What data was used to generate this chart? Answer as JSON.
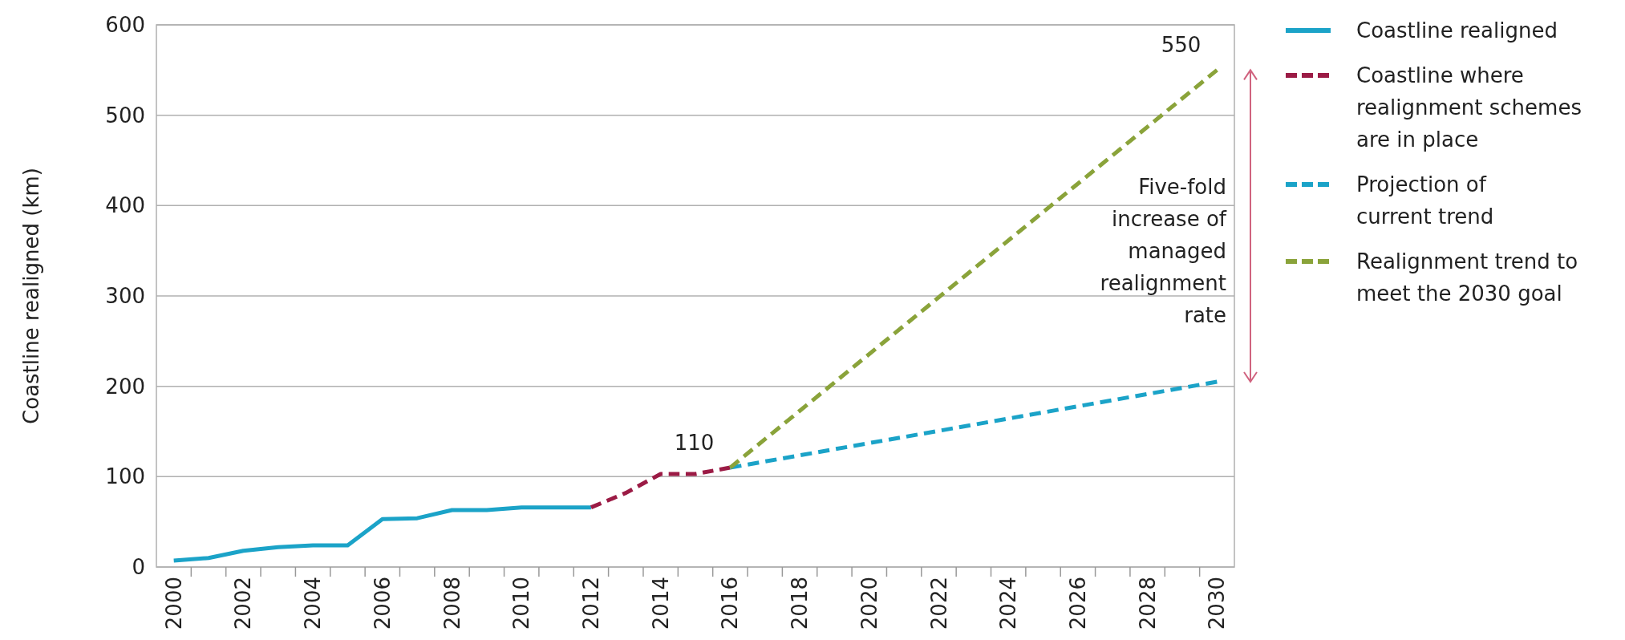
{
  "chart_data": {
    "type": "line",
    "ylabel": "Coastline realigned (km)",
    "xlim": [
      1999.5,
      2030.5
    ],
    "xticks": [
      {
        "value": 2000,
        "label": "2000"
      },
      {
        "value": 2002,
        "label": "2002"
      },
      {
        "value": 2004,
        "label": "2004"
      },
      {
        "value": 2006,
        "label": "2006"
      },
      {
        "value": 2008,
        "label": "2008"
      },
      {
        "value": 2010,
        "label": "2010"
      },
      {
        "value": 2012,
        "label": "2012"
      },
      {
        "value": 2014,
        "label": "2014"
      },
      {
        "value": 2016,
        "label": "2016"
      },
      {
        "value": 2018,
        "label": "2018"
      },
      {
        "value": 2020,
        "label": "2020"
      },
      {
        "value": 2022,
        "label": "2022"
      },
      {
        "value": 2024,
        "label": "2024"
      },
      {
        "value": 2026,
        "label": "2026"
      },
      {
        "value": 2028,
        "label": "2028"
      },
      {
        "value": 2030,
        "label": "2030"
      },
      {
        "value": 2000.5,
        "label": null
      },
      {
        "value": 2001.5,
        "label": null
      },
      {
        "value": 2002.5,
        "label": null
      },
      {
        "value": 2003.5,
        "label": null
      },
      {
        "value": 2004.5,
        "label": null
      },
      {
        "value": 2005.5,
        "label": null
      },
      {
        "value": 2006.5,
        "label": null
      },
      {
        "value": 2007.5,
        "label": null
      },
      {
        "value": 2008.5,
        "label": null
      },
      {
        "value": 2009.5,
        "label": null
      },
      {
        "value": 2010.5,
        "label": null
      },
      {
        "value": 2011.5,
        "label": null
      },
      {
        "value": 2012.5,
        "label": null
      },
      {
        "value": 2013.5,
        "label": null
      },
      {
        "value": 2014.5,
        "label": null
      },
      {
        "value": 2015.5,
        "label": null
      },
      {
        "value": 2016.5,
        "label": null
      },
      {
        "value": 2017.5,
        "label": null
      },
      {
        "value": 2018.5,
        "label": null
      },
      {
        "value": 2019.5,
        "label": null
      },
      {
        "value": 2020.5,
        "label": null
      },
      {
        "value": 2021.5,
        "label": null
      },
      {
        "value": 2022.5,
        "label": null
      },
      {
        "value": 2023.5,
        "label": null
      },
      {
        "value": 2024.5,
        "label": null
      },
      {
        "value": 2025.5,
        "label": null
      },
      {
        "value": 2026.5,
        "label": null
      },
      {
        "value": 2027.5,
        "label": null
      },
      {
        "value": 2028.5,
        "label": null
      },
      {
        "value": 2029.5,
        "label": null
      }
    ],
    "ylim": [
      0,
      600
    ],
    "yticks": [
      0,
      100,
      200,
      300,
      400,
      500,
      600
    ],
    "grid": "y",
    "legend": "right",
    "series": [
      {
        "name": "Coastline realigned",
        "color": "#1ba3c8",
        "line_style": "solid",
        "x": [
          2000,
          2001,
          2002,
          2003,
          2004,
          2005,
          2006,
          2007,
          2008,
          2009,
          2010,
          2011,
          2012
        ],
        "values": [
          7,
          10,
          18,
          22,
          24,
          24,
          53,
          54,
          63,
          63,
          66,
          66,
          66
        ]
      },
      {
        "name": "Coastline where realignment schemes are in place",
        "color": "#9b1b45",
        "line_style": "dashed",
        "x": [
          2012,
          2013,
          2014,
          2015,
          2016
        ],
        "values": [
          66,
          82,
          103,
          103,
          110
        ]
      },
      {
        "name": "Projection of current trend",
        "color": "#1ba3c8",
        "line_style": "dashed",
        "x": [
          2016,
          2030
        ],
        "values": [
          110,
          205
        ]
      },
      {
        "name": "Realignment trend to meet the 2030 goal",
        "color": "#8aa33a",
        "line_style": "dashed",
        "x": [
          2016,
          2030
        ],
        "values": [
          110,
          550
        ]
      }
    ],
    "annotations": [
      {
        "text": "110",
        "x": 2016,
        "y": 110
      },
      {
        "text": "550",
        "x": 2030,
        "y": 550
      },
      "Five-fold increase of managed realignment rate"
    ]
  }
}
